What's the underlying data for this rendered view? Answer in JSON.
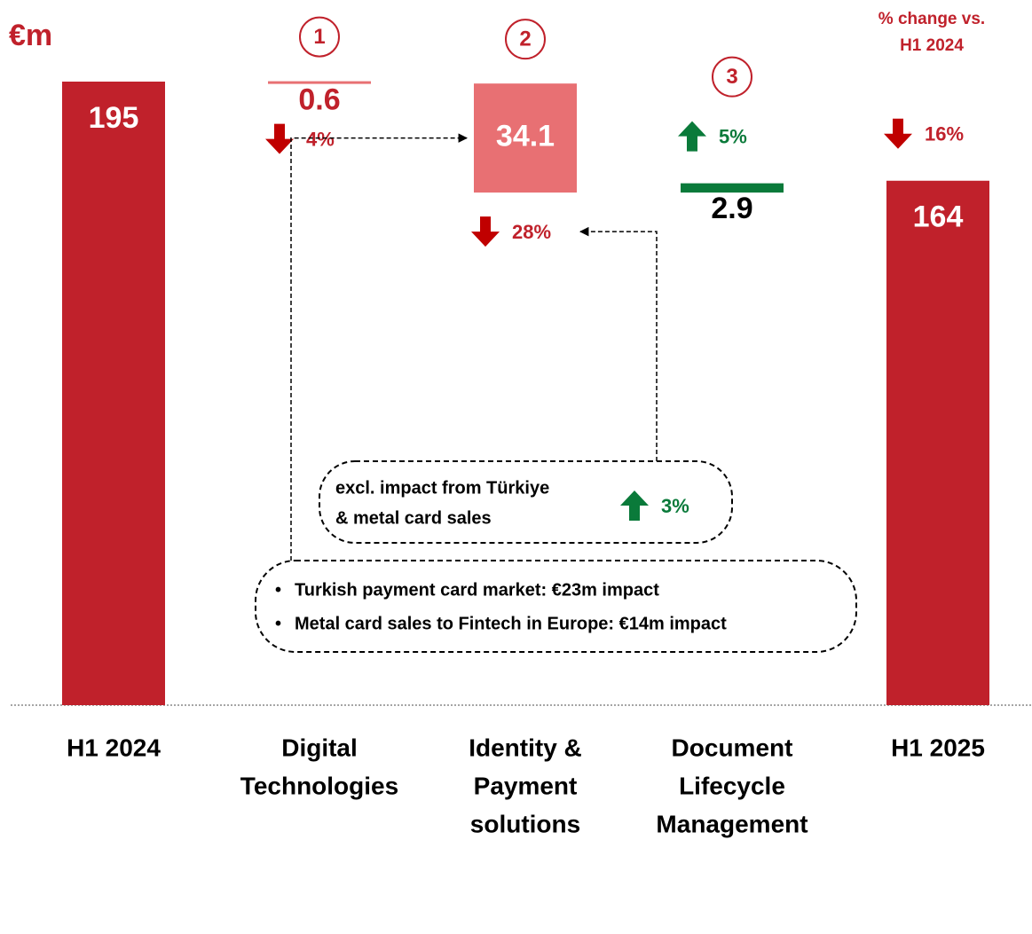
{
  "chart_data": {
    "type": "waterfall",
    "unit_label": "€m",
    "change_header": [
      "% change vs.",
      "H1 2024"
    ],
    "categories": [
      [
        "H1 2024"
      ],
      [
        "Digital",
        "Technologies"
      ],
      [
        "Identity &",
        "Payment",
        "solutions"
      ],
      [
        "Document",
        "Lifecycle",
        "Management"
      ],
      [
        "H1 2025"
      ]
    ],
    "kinds": [
      "total",
      "delta",
      "delta",
      "delta",
      "total"
    ],
    "values": [
      195,
      -0.6,
      -34.1,
      2.9,
      164
    ],
    "value_labels": [
      "195",
      "0.6",
      "34.1",
      "2.9",
      "164"
    ],
    "colors": [
      "#c0212b",
      "#e87073",
      "#e87073",
      "#0a7a3a",
      "#c0212b"
    ],
    "changes": [
      null,
      -4,
      -28,
      5,
      -16
    ],
    "change_labels": [
      null,
      "4%",
      "28%",
      "5%",
      "16%"
    ],
    "step_markers": [
      null,
      "1",
      "2",
      "3",
      null
    ],
    "note": {
      "lines": [
        "excl. impact from Türkiye",
        "& metal card sales"
      ],
      "change": 3,
      "change_label": "3%"
    },
    "bullets": [
      "Turkish payment card market: €23m impact",
      "Metal card sales to Fintech in Europe: €14m impact"
    ]
  }
}
